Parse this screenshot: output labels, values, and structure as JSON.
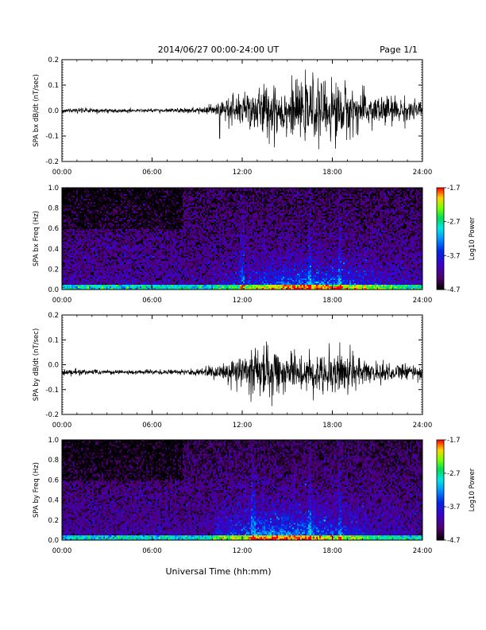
{
  "header": {
    "title": "2014/06/27  00:00-24:00 UT",
    "page": "Page 1/1"
  },
  "x_axis": {
    "label": "Universal Time (hh:mm)",
    "tick_labels": [
      "00:00",
      "06:00",
      "12:00",
      "18:00",
      "24:00"
    ],
    "range_hours": [
      0,
      24
    ]
  },
  "chart_data": [
    {
      "type": "line",
      "ylabel": "SPA bx dB/dt (nT/sec)",
      "ylim": [
        -0.2,
        0.2
      ],
      "y_ticks": [
        "0.2",
        "0.1",
        "0.0",
        "-0.1",
        "-0.2"
      ],
      "x_range": [
        0,
        24
      ],
      "baseline": 0.0,
      "activity_envelope": {
        "x": [
          0,
          2,
          4,
          6,
          8,
          9,
          10,
          11,
          12,
          13,
          14,
          15,
          16,
          17,
          18,
          19,
          20,
          21,
          22,
          23,
          24
        ],
        "amplitude": [
          0.005,
          0.005,
          0.004,
          0.004,
          0.005,
          0.006,
          0.012,
          0.03,
          0.04,
          0.05,
          0.06,
          0.05,
          0.055,
          0.06,
          0.065,
          0.055,
          0.04,
          0.035,
          0.03,
          0.025,
          0.02
        ]
      },
      "spikes": [
        {
          "x": 16.7,
          "y": 0.15
        },
        {
          "x": 18.2,
          "y": -0.15
        },
        {
          "x": 10.5,
          "y": -0.11
        },
        {
          "x": 14.2,
          "y": 0.09
        }
      ]
    },
    {
      "type": "heatmap",
      "ylabel": "SPA bx Freq (Hz)",
      "ylim": [
        0.0,
        1.0
      ],
      "y_ticks": [
        "1.0",
        "0.8",
        "0.6",
        "0.4",
        "0.2",
        "0.0"
      ],
      "x_range": [
        0,
        24
      ],
      "colorbar": {
        "label": "Log10 Power",
        "ticks": [
          "-1.7",
          "-2.7",
          "-3.7",
          "-4.7"
        ],
        "range": [
          -4.7,
          -1.7
        ]
      },
      "features": [
        {
          "kind": "low_freq_band",
          "hours": [
            0,
            24
          ],
          "freq_max": 0.05,
          "level": -2.9
        },
        {
          "kind": "enhancement",
          "hours": [
            10,
            24
          ],
          "center": 16.5,
          "freq_max": 0.15,
          "level": -3.2
        },
        {
          "kind": "vertical_streak",
          "hour": 12.0,
          "level": -3.6
        },
        {
          "kind": "vertical_streak",
          "hour": 16.5,
          "level": -3.2
        },
        {
          "kind": "vertical_streak",
          "hour": 18.5,
          "level": -3.5
        }
      ]
    },
    {
      "type": "line",
      "ylabel": "SPA by dB/dt (nT/sec)",
      "ylim": [
        -0.2,
        0.2
      ],
      "y_ticks": [
        "0.2",
        "0.1",
        "0.0",
        "-0.1",
        "-0.2"
      ],
      "x_range": [
        0,
        24
      ],
      "baseline": -0.03,
      "activity_envelope": {
        "x": [
          0,
          2,
          4,
          6,
          8,
          9,
          10,
          11,
          12,
          13,
          14,
          15,
          16,
          17,
          18,
          19,
          20,
          21,
          22,
          23,
          24
        ],
        "amplitude": [
          0.006,
          0.006,
          0.005,
          0.005,
          0.006,
          0.008,
          0.012,
          0.02,
          0.035,
          0.05,
          0.055,
          0.035,
          0.04,
          0.045,
          0.055,
          0.045,
          0.03,
          0.025,
          0.02,
          0.018,
          0.015
        ]
      },
      "spikes": [
        {
          "x": 18.5,
          "y": 0.09
        },
        {
          "x": 13.7,
          "y": 0.08
        },
        {
          "x": 18.0,
          "y": -0.11
        }
      ]
    },
    {
      "type": "heatmap",
      "ylabel": "SPA by Freq (Hz)",
      "ylim": [
        0.0,
        1.0
      ],
      "y_ticks": [
        "1.0",
        "0.8",
        "0.6",
        "0.4",
        "0.2",
        "0.0"
      ],
      "x_range": [
        0,
        24
      ],
      "colorbar": {
        "label": "Log10 Power",
        "ticks": [
          "-1.7",
          "-2.7",
          "-3.7",
          "-4.7"
        ],
        "range": [
          -4.7,
          -1.7
        ]
      },
      "features": [
        {
          "kind": "low_freq_band",
          "hours": [
            0,
            24
          ],
          "freq_max": 0.05,
          "level": -2.9
        },
        {
          "kind": "enhancement",
          "hours": [
            10,
            24
          ],
          "center": 15.0,
          "freq_max": 0.2,
          "level": -3.1
        },
        {
          "kind": "vertical_streak",
          "hour": 12.7,
          "level": -3.4
        },
        {
          "kind": "vertical_streak",
          "hour": 16.5,
          "level": -3.2
        },
        {
          "kind": "vertical_streak",
          "hour": 18.5,
          "level": -3.4
        }
      ]
    }
  ]
}
